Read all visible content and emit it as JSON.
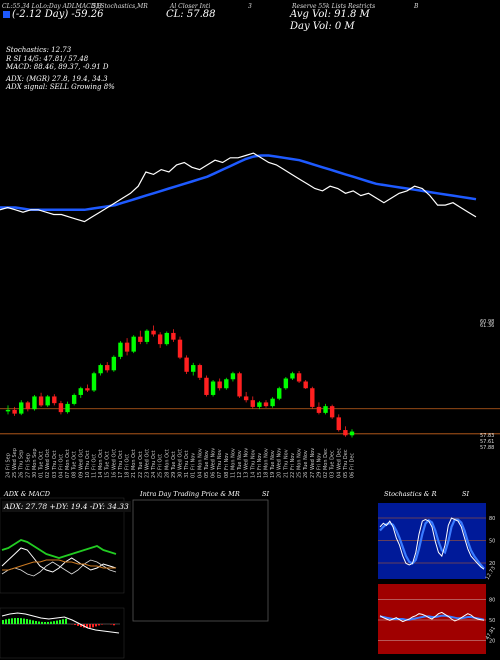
{
  "header": {
    "line1": [
      "CL:55.34 LoLo:Day ADLMACD,B",
      "SI,Stochastics,MR",
      "Al Closer Inti",
      "3",
      "Reserve 55k Lists Restricts",
      "B"
    ],
    "change_label": "(-2.12 Day) -59.26",
    "close_label": "CL: 57.88",
    "avg_vol_label": "Avg Vol: 91.8 M",
    "day_vol_label": "Day Vol: 0  M",
    "legend_square_color": "#1e5aff"
  },
  "stats": {
    "stochastics": "Stochastics: 12.73",
    "rsi": "R                SI 14/5: 47.81/ 57.48",
    "macd": "MACD: 88.46,  89.37, -0.91 D",
    "adx": "ADX:                        (MGR) 27.8,  19.4,  34.3",
    "adx_signal": "ADX  signal: SELL  Growing 8%"
  },
  "top_chart": {
    "price_series": [
      57,
      58,
      57,
      56,
      57,
      57,
      56,
      55,
      55,
      54,
      53,
      52,
      54,
      56,
      58,
      60,
      62,
      64,
      67,
      73,
      72,
      74,
      73,
      76,
      77,
      75,
      74,
      76,
      78,
      77,
      79,
      79,
      80,
      81,
      79,
      77,
      76,
      74,
      72,
      70,
      68,
      66,
      65,
      67,
      66,
      64,
      65,
      63,
      64,
      62,
      60,
      62,
      64,
      65,
      67,
      66,
      63,
      59,
      59,
      60,
      58,
      56,
      54
    ],
    "avg_series": [
      58,
      58,
      58,
      57.5,
      57,
      57,
      57,
      57,
      57,
      57,
      57,
      57,
      57.5,
      58,
      58.5,
      59,
      60,
      61,
      62,
      63,
      64,
      65,
      66,
      67,
      68,
      69,
      70,
      71,
      72.5,
      74,
      75.5,
      77,
      78.5,
      79.5,
      80,
      80,
      79.5,
      79,
      78.5,
      78,
      77,
      76,
      75,
      74,
      73,
      72,
      71,
      70,
      69,
      68,
      67.5,
      67,
      66.5,
      66,
      65.5,
      65,
      64.5,
      64,
      63.5,
      63,
      62.5,
      62,
      61.5
    ],
    "price_color": "#ffffff",
    "avg_color": "#1e5aff"
  },
  "candles": {
    "right_labels": [
      "60.98",
      "61.36",
      "57.83",
      "57.61",
      "57.88"
    ],
    "x_labels": [
      "24 Fri Sep",
      "25 Wed Sep",
      "26 Thu Sep",
      "27 Fri Sep",
      "30 Mon Sep",
      "01 Tue Oct",
      "02 Wed Oct",
      "03 Thu Oct",
      "04 Fri Oct",
      "07 Mon Oct",
      "08 Tue Oct",
      "09 Wed Oct",
      "10 Thu Oct",
      "11 Fri Oct",
      "14 Mon Oct",
      "15 Tue Oct",
      "16 Wed Oct",
      "17 Thu Oct",
      "18 Fri Oct",
      "21 Mon Oct",
      "22 Tue Oct",
      "23 Wed Oct",
      "24 Thu Oct",
      "25 Fri Oct",
      "28 Mon Oct",
      "29 Tue Oct",
      "30 Wed Oct",
      "31 Thu Oct",
      "01 Fri Nov",
      "04 Mon Nov",
      "05 Tue Nov",
      "06 Wed Nov",
      "07 Thu Nov",
      "08 Fri Nov",
      "11 Mon Nov",
      "12 Tue Nov",
      "13 Wed Nov",
      "14 Thu Nov",
      "15 Fri Nov",
      "18 Mon Nov",
      "19 Tue Nov",
      "20 Wed Nov",
      "21 Thu Nov",
      "22 Fri Nov",
      "25 Mon Nov",
      "26 Tue Nov",
      "27 Wed Nov",
      "29 Fri Nov",
      "02 Mon Dec",
      "03 Tue Dec",
      "04 Wed Dec",
      "05 Thu Dec",
      "06 Fri Dec"
    ],
    "up_color": "#00ff00",
    "down_color": "#ff2020",
    "ohlc": [
      [
        59.0,
        59.8,
        58.6,
        59.2
      ],
      [
        59.2,
        59.6,
        58.4,
        58.7
      ],
      [
        58.7,
        60.5,
        58.5,
        60.2
      ],
      [
        60.2,
        60.4,
        59.0,
        59.3
      ],
      [
        59.3,
        61.2,
        59.1,
        61.0
      ],
      [
        61.0,
        61.5,
        59.6,
        59.8
      ],
      [
        59.8,
        61.2,
        59.6,
        61.0
      ],
      [
        61.0,
        61.3,
        59.8,
        60.1
      ],
      [
        60.1,
        60.4,
        58.6,
        58.9
      ],
      [
        58.9,
        60.3,
        58.7,
        60.0
      ],
      [
        60.0,
        61.4,
        59.8,
        61.2
      ],
      [
        61.2,
        62.3,
        60.8,
        62.1
      ],
      [
        62.1,
        62.6,
        61.6,
        61.8
      ],
      [
        61.8,
        64.3,
        61.6,
        64.1
      ],
      [
        64.1,
        65.4,
        63.8,
        65.2
      ],
      [
        65.2,
        65.6,
        64.2,
        64.5
      ],
      [
        64.5,
        66.5,
        64.3,
        66.3
      ],
      [
        66.3,
        68.4,
        66.0,
        68.2
      ],
      [
        68.2,
        68.8,
        66.5,
        67.0
      ],
      [
        67.0,
        69.2,
        66.8,
        69.0
      ],
      [
        69.0,
        69.8,
        68.0,
        68.3
      ],
      [
        68.3,
        70.0,
        68.0,
        69.8
      ],
      [
        69.8,
        70.5,
        69.0,
        69.3
      ],
      [
        69.3,
        69.6,
        67.5,
        68.0
      ],
      [
        68.0,
        69.7,
        67.8,
        69.5
      ],
      [
        69.5,
        70.0,
        68.3,
        68.6
      ],
      [
        68.6,
        69.0,
        66.0,
        66.2
      ],
      [
        66.2,
        66.5,
        64.0,
        64.3
      ],
      [
        64.3,
        65.5,
        63.8,
        65.2
      ],
      [
        65.2,
        65.4,
        63.2,
        63.5
      ],
      [
        63.5,
        63.8,
        61.0,
        61.2
      ],
      [
        61.2,
        63.2,
        61.0,
        63.0
      ],
      [
        63.0,
        63.4,
        61.8,
        62.1
      ],
      [
        62.1,
        63.5,
        61.9,
        63.3
      ],
      [
        63.3,
        64.3,
        63.0,
        64.1
      ],
      [
        64.1,
        64.3,
        60.8,
        61.0
      ],
      [
        61.0,
        61.6,
        60.2,
        60.5
      ],
      [
        60.5,
        61.0,
        59.4,
        59.6
      ],
      [
        59.6,
        60.4,
        59.3,
        60.2
      ],
      [
        60.2,
        60.5,
        59.5,
        59.7
      ],
      [
        59.7,
        60.9,
        59.5,
        60.7
      ],
      [
        60.7,
        62.3,
        60.5,
        62.1
      ],
      [
        62.1,
        63.6,
        61.9,
        63.4
      ],
      [
        63.4,
        64.3,
        63.2,
        64.1
      ],
      [
        64.1,
        64.4,
        62.8,
        63.0
      ],
      [
        63.0,
        63.2,
        62.0,
        62.1
      ],
      [
        62.1,
        62.3,
        59.4,
        59.6
      ],
      [
        59.6,
        60.2,
        58.6,
        58.8
      ],
      [
        58.8,
        60.0,
        58.6,
        59.7
      ],
      [
        59.7,
        59.9,
        58.0,
        58.2
      ],
      [
        58.2,
        58.6,
        56.3,
        56.5
      ],
      [
        56.5,
        57.0,
        55.6,
        55.8
      ],
      [
        55.8,
        56.6,
        55.5,
        56.3
      ]
    ]
  },
  "panels": {
    "adx_macd": {
      "title": "ADX  & MACD",
      "badge": "ADX: 27.78  +DY: 19.4  -DY: 34.33"
    },
    "intraday": {
      "title": "Intra Day Trading Price  & MR",
      "title_si": "SI"
    },
    "stoch": {
      "title": "Stochastics & R",
      "title_si": "SI",
      "axis_top": [
        "80",
        "50",
        "20"
      ],
      "axis_bottom": [
        "80",
        "50",
        "20"
      ],
      "last_top": "12.73",
      "last_bottom": "47.81",
      "stoch_k": [
        70,
        75,
        72,
        78,
        70,
        55,
        45,
        30,
        20,
        18,
        20,
        35,
        60,
        78,
        80,
        78,
        70,
        50,
        35,
        30,
        45,
        72,
        82,
        80,
        78,
        70,
        55,
        40,
        30,
        25,
        20,
        15,
        12
      ],
      "stoch_d": [
        65,
        70,
        74,
        75,
        73,
        65,
        55,
        42,
        30,
        22,
        20,
        25,
        40,
        60,
        75,
        79,
        76,
        65,
        50,
        38,
        35,
        50,
        70,
        80,
        80,
        76,
        65,
        50,
        38,
        30,
        24,
        18,
        13
      ],
      "rsi": [
        55,
        52,
        50,
        48,
        50,
        52,
        49,
        46,
        48,
        50,
        53,
        55,
        58,
        57,
        55,
        52,
        50,
        54,
        58,
        60,
        57,
        54,
        50,
        47,
        49,
        52,
        55,
        58,
        56,
        52,
        50,
        49,
        48
      ],
      "rsi_smooth": [
        54,
        53,
        52,
        51,
        50,
        50,
        50,
        50,
        49,
        49,
        50,
        51,
        52,
        53,
        54,
        54,
        53,
        53,
        54,
        55,
        55,
        54,
        53,
        52,
        51,
        51,
        52,
        53,
        53,
        52,
        51,
        50,
        49
      ]
    }
  }
}
